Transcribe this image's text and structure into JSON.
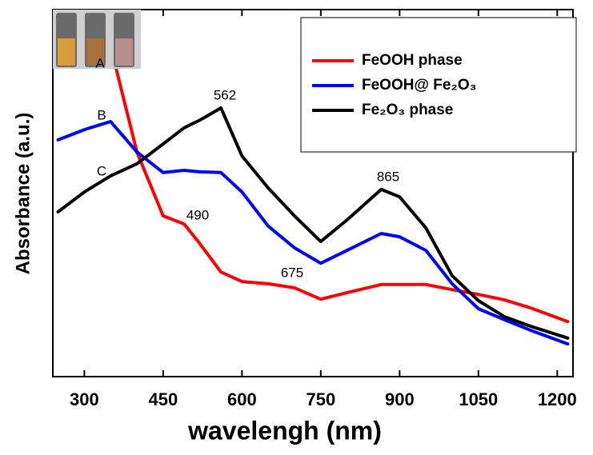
{
  "chart_data": {
    "type": "line",
    "x_label": "wavelengh (nm)",
    "y_label": "Absorbance (a.u.)",
    "x": [
      250,
      300,
      350,
      400,
      450,
      490,
      520,
      560,
      600,
      650,
      700,
      750,
      800,
      865,
      900,
      950,
      1000,
      1050,
      1100,
      1150,
      1220
    ],
    "series": [
      {
        "name": "FeOOH phase",
        "color": "#ff0000",
        "values": [
          null,
          null,
          90,
          61.2,
          43.8,
          41.6,
          36.2,
          28.5,
          25.9,
          25.3,
          24.2,
          21.1,
          22.9,
          25.1,
          25.1,
          25.1,
          23.7,
          22.4,
          20.9,
          18.7,
          15.0
        ]
      },
      {
        "name": "FeOOH@ Fe₂O₃",
        "color": "#0000ff",
        "values": [
          64.5,
          67.3,
          69.5,
          61.2,
          55.6,
          56.2,
          55.8,
          55.6,
          50.3,
          41.0,
          35.1,
          30.9,
          34.4,
          39.0,
          38.1,
          34.4,
          25.3,
          18.5,
          15.5,
          12.6,
          8.9
        ]
      },
      {
        "name": "Fe₂O₃ phase",
        "color": "#000000",
        "values": [
          44.9,
          50.3,
          54.7,
          58.0,
          63.4,
          67.8,
          69.9,
          73.2,
          60.1,
          51.4,
          43.8,
          36.8,
          42.7,
          51.0,
          49.0,
          40.5,
          27.5,
          20.7,
          16.3,
          13.7,
          10.5
        ]
      }
    ],
    "annotations": [
      "562",
      "865",
      "490",
      "675",
      "A",
      "B",
      "C"
    ],
    "xlim": [
      240,
      1230
    ],
    "ylim": [
      0,
      100
    ],
    "xticks": [
      300,
      450,
      600,
      750,
      900,
      1050,
      1200
    ],
    "grid": false
  }
}
